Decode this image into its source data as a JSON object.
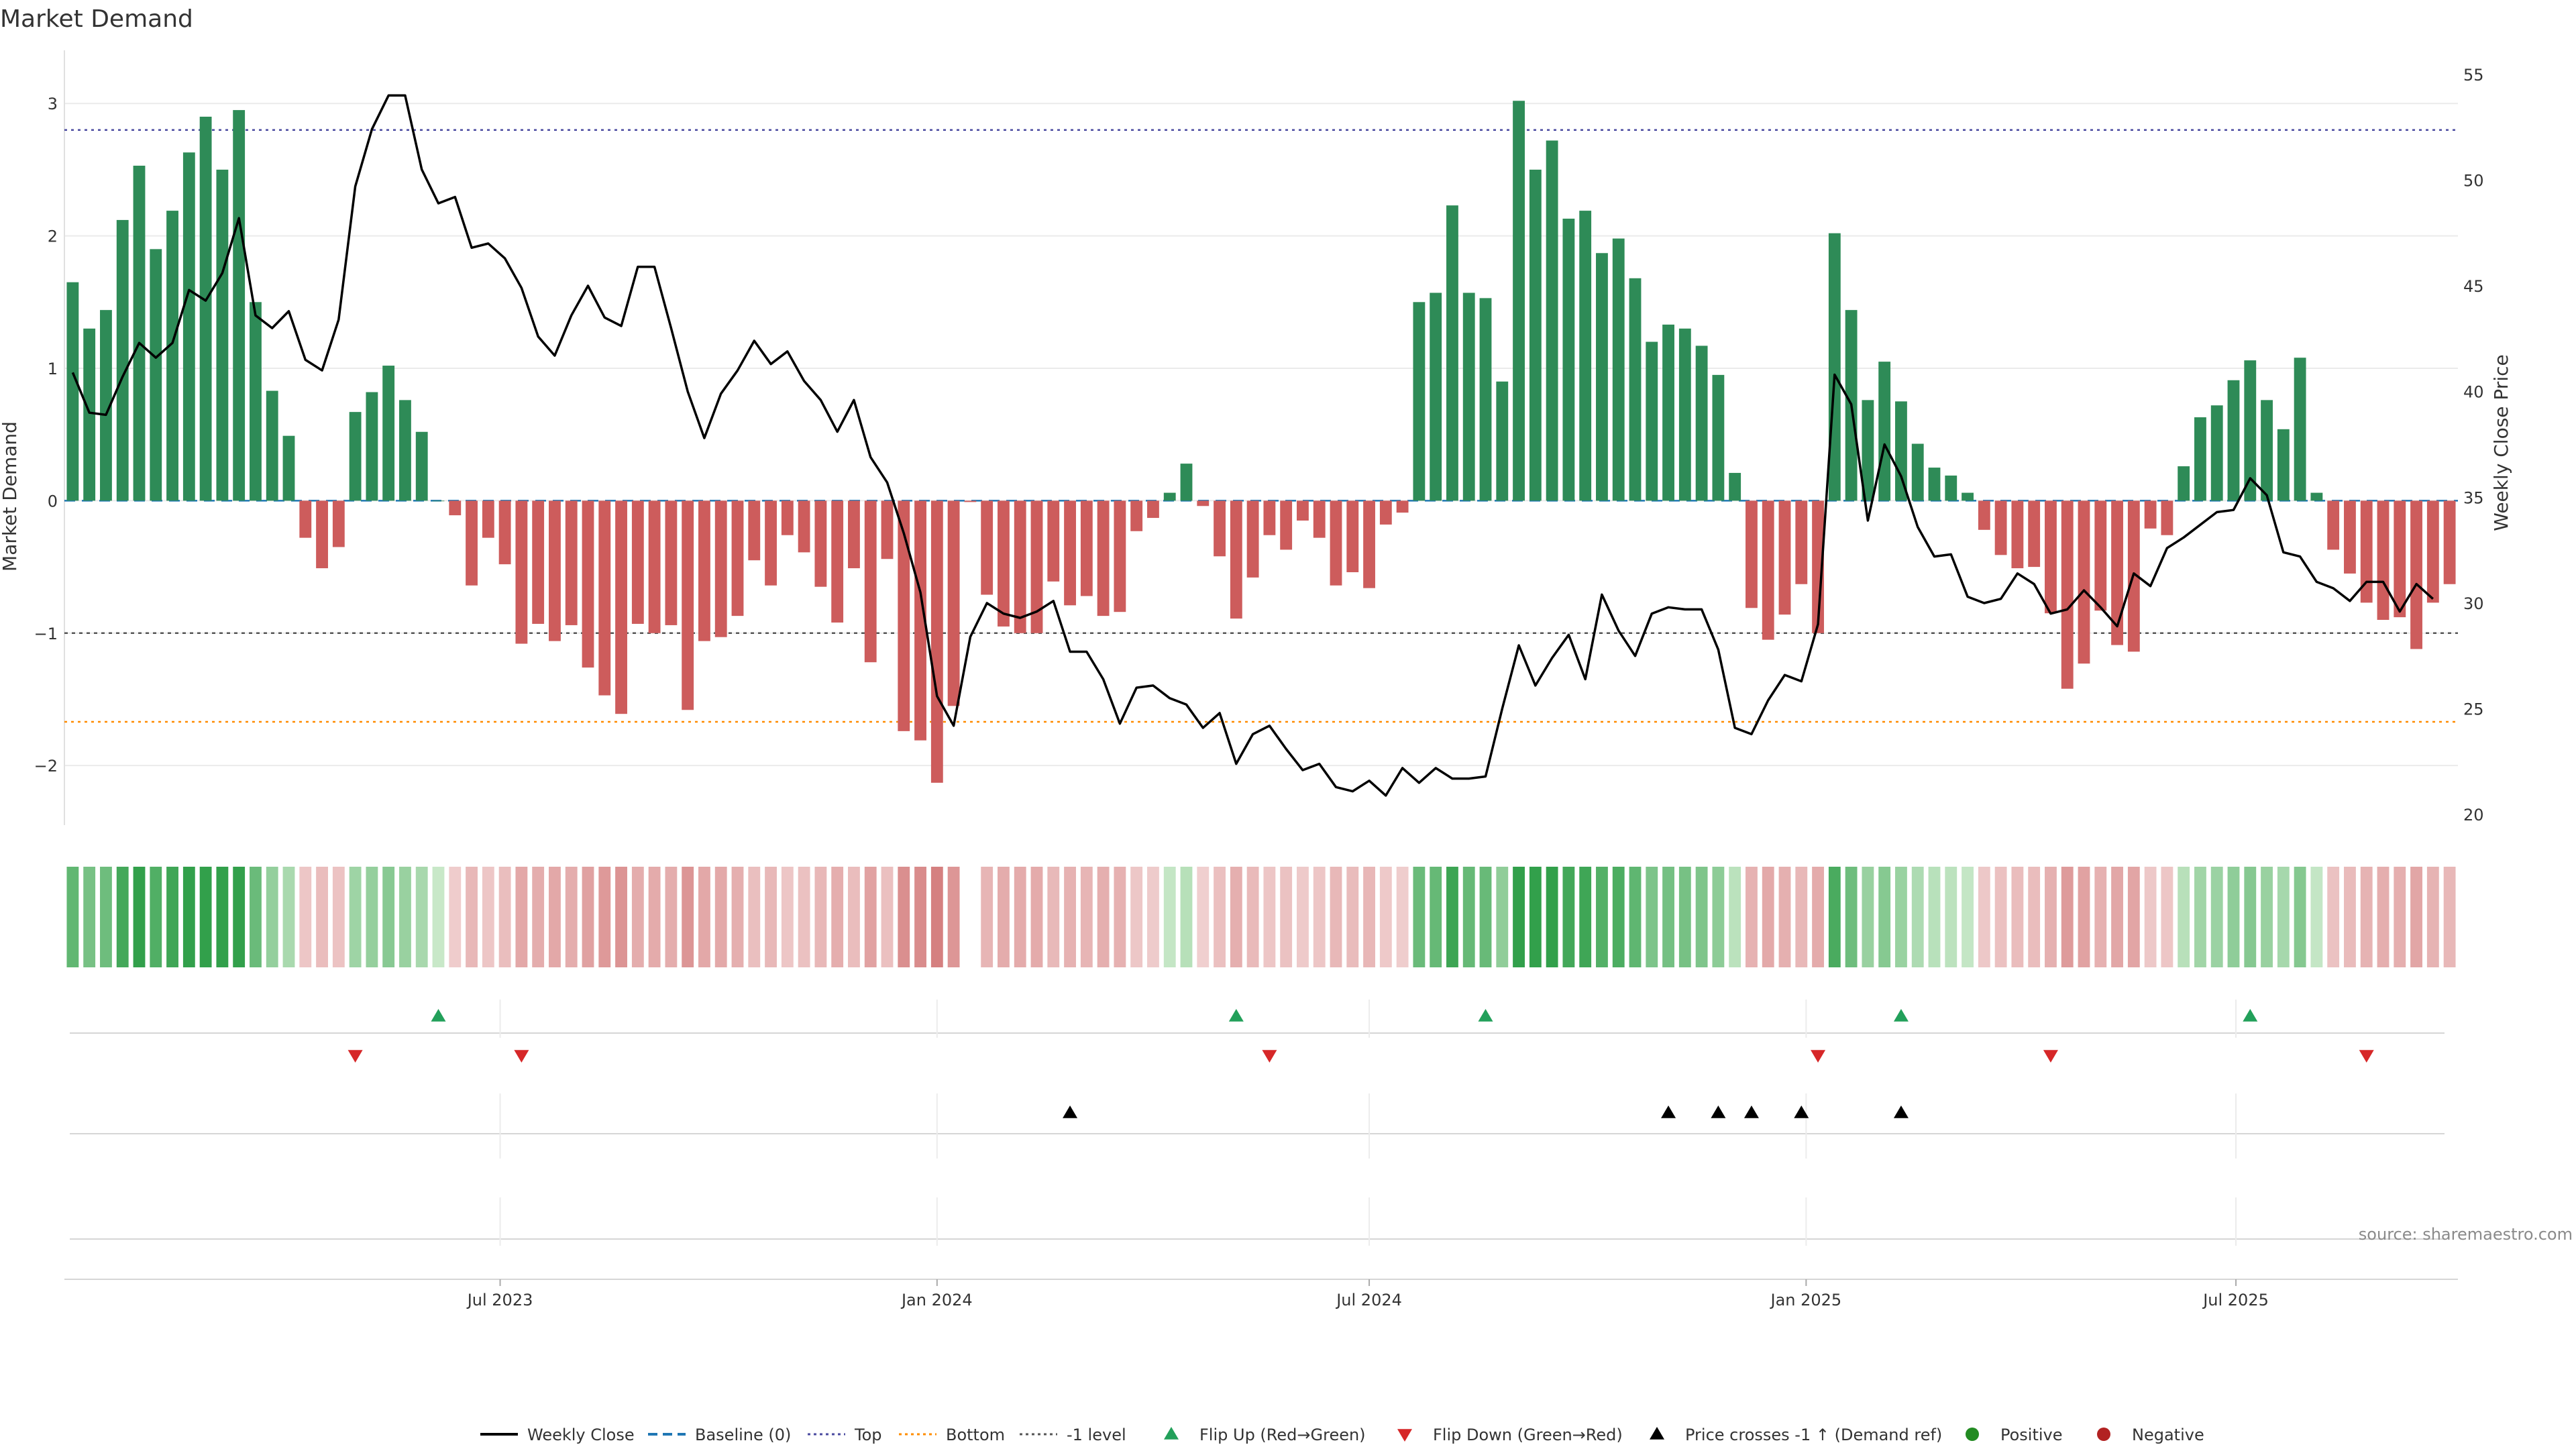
{
  "chart_data": {
    "type": "bar",
    "title": "Market Demand",
    "ylabel": "Market Demand",
    "y2label": "Weekly Close Price",
    "ylim": [
      -2.45,
      3.3
    ],
    "y_ticks": [
      3,
      2,
      1,
      0,
      -1,
      -2
    ],
    "y_tick_labels": [
      "3",
      "2",
      "1",
      "0",
      "−1",
      "−2"
    ],
    "y2lim": [
      19.5,
      55.5
    ],
    "y2_ticks": [
      55,
      50,
      45,
      40,
      35,
      30,
      25,
      20
    ],
    "x_start_date": "2023-01-02",
    "x_end_date": "2025-10-06",
    "x_ticks": [
      {
        "date": "2023-07-01",
        "label": "Jul 2023"
      },
      {
        "date": "2024-01-01",
        "label": "Jan 2024"
      },
      {
        "date": "2024-07-01",
        "label": "Jul 2024"
      },
      {
        "date": "2025-01-01",
        "label": "Jan 2025"
      },
      {
        "date": "2025-07-01",
        "label": "Jul 2025"
      }
    ],
    "reference_lines": {
      "top": 2.8,
      "bottom": -1.67,
      "minus_one": -1,
      "baseline": 0
    },
    "demand_values": [
      1.65,
      1.3,
      1.44,
      2.12,
      2.53,
      1.9,
      2.19,
      2.63,
      2.9,
      2.5,
      2.95,
      1.5,
      0.83,
      0.49,
      -0.28,
      -0.51,
      -0.35,
      0.67,
      0.82,
      1.02,
      0.76,
      0.52,
      0,
      -0.11,
      -0.64,
      -0.28,
      -0.48,
      -1.08,
      -0.93,
      -1.06,
      -0.94,
      -1.26,
      -1.47,
      -1.61,
      -0.93,
      -1.0,
      -0.94,
      -1.58,
      -1.06,
      -1.03,
      -0.87,
      -0.45,
      -0.64,
      -0.26,
      -0.39,
      -0.65,
      -0.92,
      -0.51,
      -1.22,
      -0.44,
      -1.74,
      -1.81,
      -2.13,
      -1.55,
      -0.01,
      -0.71,
      -0.95,
      -1.0,
      -1.0,
      -0.61,
      -0.79,
      -0.72,
      -0.87,
      -0.84,
      -0.23,
      -0.13,
      0.06,
      0.28,
      -0.04,
      -0.42,
      -0.89,
      -0.58,
      -0.26,
      -0.37,
      -0.15,
      -0.28,
      -0.64,
      -0.54,
      -0.66,
      -0.18,
      -0.09,
      1.5,
      1.57,
      2.23,
      1.57,
      1.53,
      0.9,
      3.02,
      2.5,
      2.72,
      2.13,
      2.19,
      1.87,
      1.98,
      1.68,
      1.2,
      1.33,
      1.3,
      1.17,
      0.95,
      0.21,
      -0.81,
      -1.05,
      -0.86,
      -0.63,
      -1.0,
      2.02,
      1.44,
      0.76,
      1.05,
      0.75,
      0.43,
      0.25,
      0.19,
      0.06,
      -0.22,
      -0.41,
      -0.51,
      -0.5,
      -0.85,
      -1.42,
      -1.23,
      -0.83,
      -1.09,
      -1.14,
      -0.21,
      -0.26,
      0.26,
      0.63,
      0.72,
      0.91,
      1.06,
      0.76,
      0.54,
      1.08,
      0.06,
      -0.37,
      -0.55,
      -0.77,
      -0.9,
      -0.88,
      -1.12,
      -0.77,
      -0.63
    ],
    "weekly_close": [
      40.9,
      39.0,
      38.9,
      40.7,
      42.3,
      41.6,
      42.3,
      44.8,
      44.3,
      45.6,
      48.2,
      43.6,
      43.0,
      43.8,
      41.5,
      41.0,
      43.4,
      49.7,
      52.4,
      54.0,
      54.0,
      50.5,
      48.9,
      49.2,
      46.8,
      47.0,
      46.3,
      44.9,
      42.6,
      41.7,
      43.6,
      45.0,
      43.5,
      43.1,
      45.9,
      45.9,
      43.0,
      40.0,
      37.8,
      39.9,
      41.0,
      42.4,
      41.3,
      41.9,
      40.5,
      39.6,
      38.1,
      39.6,
      36.9,
      35.7,
      33.3,
      30.5,
      25.6,
      24.2,
      28.4,
      30.0,
      29.5,
      29.3,
      29.6,
      30.1,
      27.7,
      27.7,
      26.4,
      24.3,
      26.0,
      26.1,
      25.5,
      25.2,
      24.1,
      24.8,
      22.4,
      23.8,
      24.2,
      23.1,
      22.1,
      22.4,
      21.3,
      21.1,
      21.6,
      20.9,
      22.2,
      21.5,
      22.2,
      21.7,
      21.7,
      21.8,
      25.0,
      28.0,
      26.1,
      27.4,
      28.5,
      26.4,
      30.4,
      28.7,
      27.5,
      29.5,
      29.8,
      29.7,
      29.7,
      27.8,
      24.1,
      23.8,
      25.4,
      26.6,
      26.3,
      29.0,
      40.8,
      39.4,
      33.9,
      37.5,
      36.0,
      33.6,
      32.2,
      32.3,
      30.3,
      30.0,
      30.2,
      31.4,
      30.9,
      29.5,
      29.7,
      30.6,
      29.8,
      28.9,
      31.4,
      30.8,
      32.6,
      33.1,
      33.7,
      34.3,
      34.4,
      35.9,
      35.1,
      32.4,
      32.2,
      31.0,
      30.7,
      30.1,
      31.0,
      31.0,
      29.6,
      30.9,
      30.2
    ],
    "ribbon_gaps": [
      54
    ],
    "flip_up_dates": [
      "2023-06-05",
      "2024-05-06",
      "2024-08-19",
      "2025-02-10",
      "2025-07-07"
    ],
    "flip_down_dates": [
      "2023-05-01",
      "2023-07-10",
      "2024-05-20",
      "2025-01-06",
      "2025-04-14",
      "2025-08-25"
    ],
    "cross_dates": [
      "2024-02-26",
      "2024-11-04",
      "2024-11-25",
      "2024-12-09",
      "2024-12-30",
      "2025-02-10"
    ],
    "colors": {
      "positive": "#2e8b57",
      "negative": "#cd5c5c",
      "line": "#000000",
      "baseline": "#1f77b4",
      "top": "#4a4aa0",
      "bottom": "#ff8c00",
      "minus_one": "#555555",
      "flip_up": "#22a05a",
      "flip_down": "#d62728",
      "cross": "#000000",
      "positive_dot": "#228b22",
      "negative_dot": "#b22222"
    },
    "legend_position": "bottom-center",
    "legend": [
      {
        "key": "line",
        "label": "Weekly Close"
      },
      {
        "key": "baseline",
        "label": "Baseline (0)"
      },
      {
        "key": "top",
        "label": "Top"
      },
      {
        "key": "bottom",
        "label": "Bottom"
      },
      {
        "key": "minus_one",
        "label": "-1 level"
      },
      {
        "key": "flip_up",
        "label": "Flip Up (Red→Green)"
      },
      {
        "key": "flip_down",
        "label": "Flip Down (Green→Red)"
      },
      {
        "key": "cross",
        "label": "Price crosses -1 ↑ (Demand ref)"
      },
      {
        "key": "positive_dot",
        "label": "Positive"
      },
      {
        "key": "negative_dot",
        "label": "Negative"
      }
    ],
    "source_note": "source: sharemaestro.com"
  }
}
